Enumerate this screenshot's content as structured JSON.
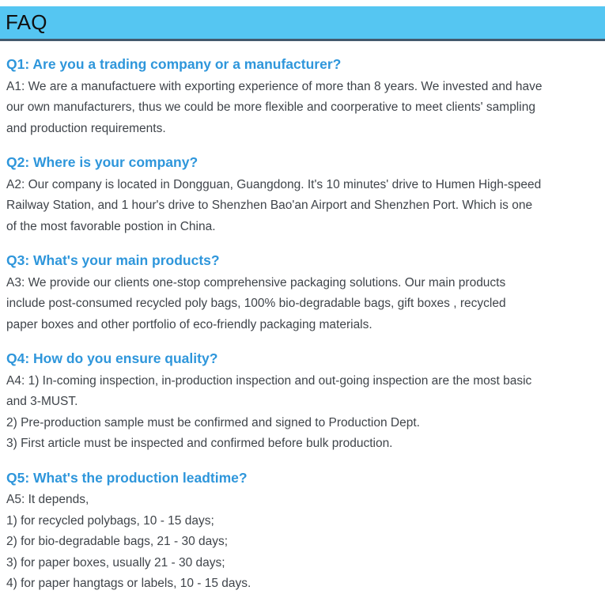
{
  "theme": {
    "header_bg": "#55C6F2",
    "header_border": "#43596D",
    "question_color": "#2E96DB",
    "body_text": "#3F444A",
    "header_text": "#101010",
    "page_bg": "#FFFFFF"
  },
  "faq": {
    "header_title": "FAQ",
    "items": [
      {
        "question": "Q1: Are you a trading company or a manufacturer?",
        "answer_lines": [
          "A1: We are a manufactuere with exporting experience of more than 8 years. We invested and have",
          "our own manufacturers, thus we could be more flexible and coorperative to meet clients' sampling",
          "and production requirements."
        ]
      },
      {
        "question": "Q2: Where is your company?",
        "answer_lines": [
          "A2: Our company is located in Dongguan, Guangdong. It's 10 minutes' drive to Humen High-speed",
          "Railway Station, and 1 hour's drive to Shenzhen Bao'an Airport and Shenzhen Port. Which is one",
          "of the most favorable postion in China."
        ]
      },
      {
        "question": "Q3: What's your main products?",
        "answer_lines": [
          "A3: We provide our clients one-stop comprehensive packaging solutions. Our main products",
          "include post-consumed recycled poly bags, 100% bio-degradable bags, gift boxes , recycled",
          "paper boxes and other portfolio of eco-friendly packaging materials."
        ]
      },
      {
        "question": "Q4: How do you ensure quality?",
        "answer_lines": [
          "A4: 1) In-coming inspection, in-production inspection and out-going inspection are the most basic",
          "and 3-MUST.",
          "2) Pre-production sample must be confirmed and signed to Production Dept.",
          "3) First article must be inspected and confirmed before bulk production."
        ]
      },
      {
        "question": "Q5: What's the production leadtime?",
        "answer_lines": [
          "A5: It depends,",
          "1) for recycled polybags, 10 - 15 days;",
          "2) for bio-degradable bags, 21 - 30 days;",
          "3) for paper boxes, usually 21 - 30 days;",
          "4) for paper hangtags or labels, 10 - 15 days."
        ]
      }
    ]
  }
}
